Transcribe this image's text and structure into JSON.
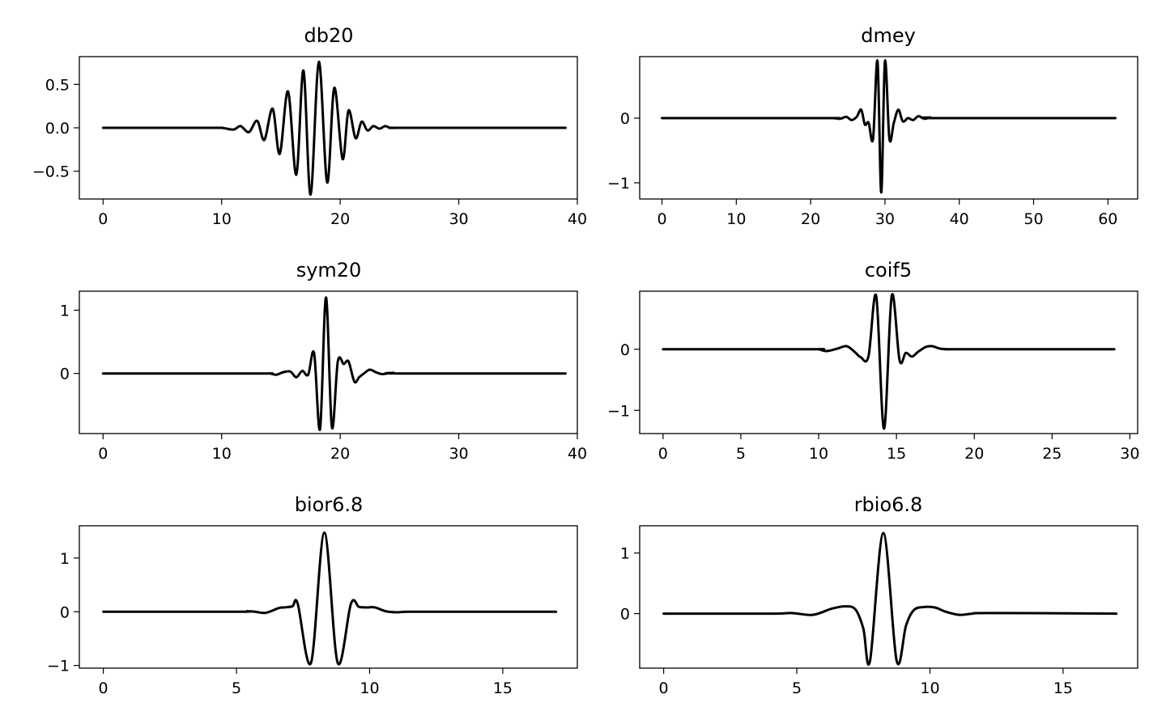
{
  "chart_data": [
    {
      "type": "line",
      "title": "db20",
      "xlim": [
        -2,
        40
      ],
      "ylim": [
        -0.82,
        0.82
      ],
      "xticks": [
        0,
        10,
        20,
        30,
        40
      ],
      "yticks": [
        -0.5,
        0.0,
        0.5
      ],
      "ytick_labels": [
        "−0.5",
        "0.0",
        "0.5"
      ],
      "x": [
        0,
        9,
        10,
        11,
        11.6,
        12.3,
        13,
        13.6,
        14.3,
        14.9,
        15.6,
        16.3,
        16.9,
        17.5,
        18.2,
        18.9,
        19.5,
        20.2,
        20.7,
        21.3,
        21.8,
        22.3,
        22.8,
        23.3,
        23.8,
        24.2,
        24.7,
        25.3,
        39
      ],
      "y": [
        0,
        0,
        0.0,
        -0.02,
        0.02,
        -0.05,
        0.08,
        -0.14,
        0.22,
        -0.3,
        0.42,
        -0.54,
        0.66,
        -0.77,
        0.76,
        -0.63,
        0.46,
        -0.36,
        0.2,
        -0.12,
        0.07,
        -0.03,
        0.02,
        -0.01,
        0.02,
        0,
        0,
        0,
        0
      ],
      "color": "#000000"
    },
    {
      "type": "line",
      "title": "dmey",
      "xlim": [
        -3,
        64
      ],
      "ylim": [
        -1.25,
        0.95
      ],
      "xticks": [
        0,
        10,
        20,
        30,
        40,
        50,
        60
      ],
      "yticks": [
        -1,
        0
      ],
      "ytick_labels": [
        "−1",
        "0"
      ],
      "x": [
        0,
        22,
        23,
        24,
        24.8,
        25.5,
        26.2,
        26.8,
        27.3,
        27.8,
        28.4,
        29,
        29.5,
        30,
        30.6,
        31.2,
        31.8,
        32.4,
        33.1,
        33.8,
        34.5,
        35.3,
        36.1,
        37,
        61
      ],
      "y": [
        0,
        0,
        0.0,
        -0.01,
        0.02,
        -0.03,
        0.02,
        0.13,
        -0.1,
        -0.07,
        -0.32,
        0.88,
        -1.15,
        0.88,
        -0.32,
        -0.07,
        0.13,
        -0.05,
        0.0,
        -0.03,
        0.03,
        -0.01,
        0.01,
        0,
        0
      ],
      "color": "#000000"
    },
    {
      "type": "line",
      "title": "sym20",
      "xlim": [
        -2,
        40
      ],
      "ylim": [
        -0.95,
        1.3
      ],
      "xticks": [
        0,
        10,
        20,
        30,
        40
      ],
      "yticks": [
        0,
        1
      ],
      "ytick_labels": [
        "0",
        "1"
      ],
      "x": [
        0,
        13,
        14,
        14.6,
        15.2,
        15.8,
        16.3,
        16.8,
        17.3,
        17.8,
        18.3,
        18.8,
        19.3,
        19.8,
        20.3,
        20.7,
        21.2,
        21.6,
        22,
        22.5,
        23,
        23.5,
        24,
        24.5,
        25,
        39
      ],
      "y": [
        0,
        0,
        0.0,
        -0.02,
        0.02,
        0.03,
        -0.06,
        0.04,
        -0.02,
        0.32,
        -0.88,
        1.2,
        -0.85,
        0.19,
        0.15,
        0.19,
        -0.13,
        -0.06,
        0.0,
        0.06,
        0.02,
        -0.01,
        0.0,
        0.01,
        0,
        0
      ],
      "color": "#000000"
    },
    {
      "type": "line",
      "title": "coif5",
      "xlim": [
        -1.5,
        30.5
      ],
      "ylim": [
        -1.38,
        0.95
      ],
      "xticks": [
        0,
        5,
        10,
        15,
        20,
        25,
        30
      ],
      "yticks": [
        -1,
        0
      ],
      "ytick_labels": [
        "−1",
        "0"
      ],
      "x": [
        0,
        9.5,
        10,
        10.5,
        11.2,
        11.8,
        12.3,
        12.7,
        13.2,
        13.7,
        14.2,
        14.7,
        15.2,
        15.6,
        16,
        16.4,
        16.9,
        17.3,
        17.8,
        18.4,
        19,
        29
      ],
      "y": [
        0,
        0,
        0.0,
        -0.03,
        0.01,
        0.05,
        -0.04,
        -0.13,
        -0.12,
        0.87,
        -1.3,
        0.88,
        -0.18,
        -0.06,
        -0.12,
        -0.04,
        0.04,
        0.05,
        0.01,
        0.0,
        0,
        0
      ],
      "color": "#000000"
    },
    {
      "type": "line",
      "title": "bior6.8",
      "xlim": [
        -0.9,
        17.8
      ],
      "ylim": [
        -1.05,
        1.6
      ],
      "xticks": [
        0,
        5,
        10,
        15
      ],
      "yticks": [
        -1,
        0,
        1
      ],
      "ytick_labels": [
        "−1",
        "0",
        "1"
      ],
      "x": [
        0,
        5,
        5.4,
        5.7,
        6.1,
        6.6,
        6.8,
        7.1,
        7.3,
        7.8,
        8.3,
        8.8,
        9.3,
        9.6,
        9.9,
        10.2,
        10.6,
        11,
        11.4,
        12,
        17
      ],
      "y": [
        0,
        0,
        0.01,
        0.0,
        -0.02,
        0.07,
        0.08,
        0.1,
        0.15,
        -0.95,
        1.47,
        -0.95,
        0.15,
        0.09,
        0.08,
        0.08,
        0.01,
        -0.01,
        0.0,
        0,
        0
      ],
      "color": "#000000"
    },
    {
      "type": "line",
      "title": "rbio6.8",
      "xlim": [
        -0.9,
        17.8
      ],
      "ylim": [
        -0.9,
        1.45
      ],
      "xticks": [
        0,
        5,
        10,
        15
      ],
      "yticks": [
        0,
        1
      ],
      "ytick_labels": [
        "0",
        "1"
      ],
      "x": [
        0,
        4,
        4.8,
        5.6,
        6.3,
        6.8,
        7.2,
        7.5,
        7.75,
        8.25,
        8.75,
        9.1,
        9.4,
        9.8,
        10.2,
        10.6,
        11.1,
        11.6,
        12.2,
        17
      ],
      "y": [
        0,
        0,
        0.01,
        -0.02,
        0.08,
        0.12,
        0.07,
        -0.25,
        -0.78,
        1.33,
        -0.78,
        -0.2,
        0.06,
        0.11,
        0.1,
        0.03,
        -0.02,
        0.0,
        0.01,
        0
      ],
      "color": "#000000"
    }
  ]
}
